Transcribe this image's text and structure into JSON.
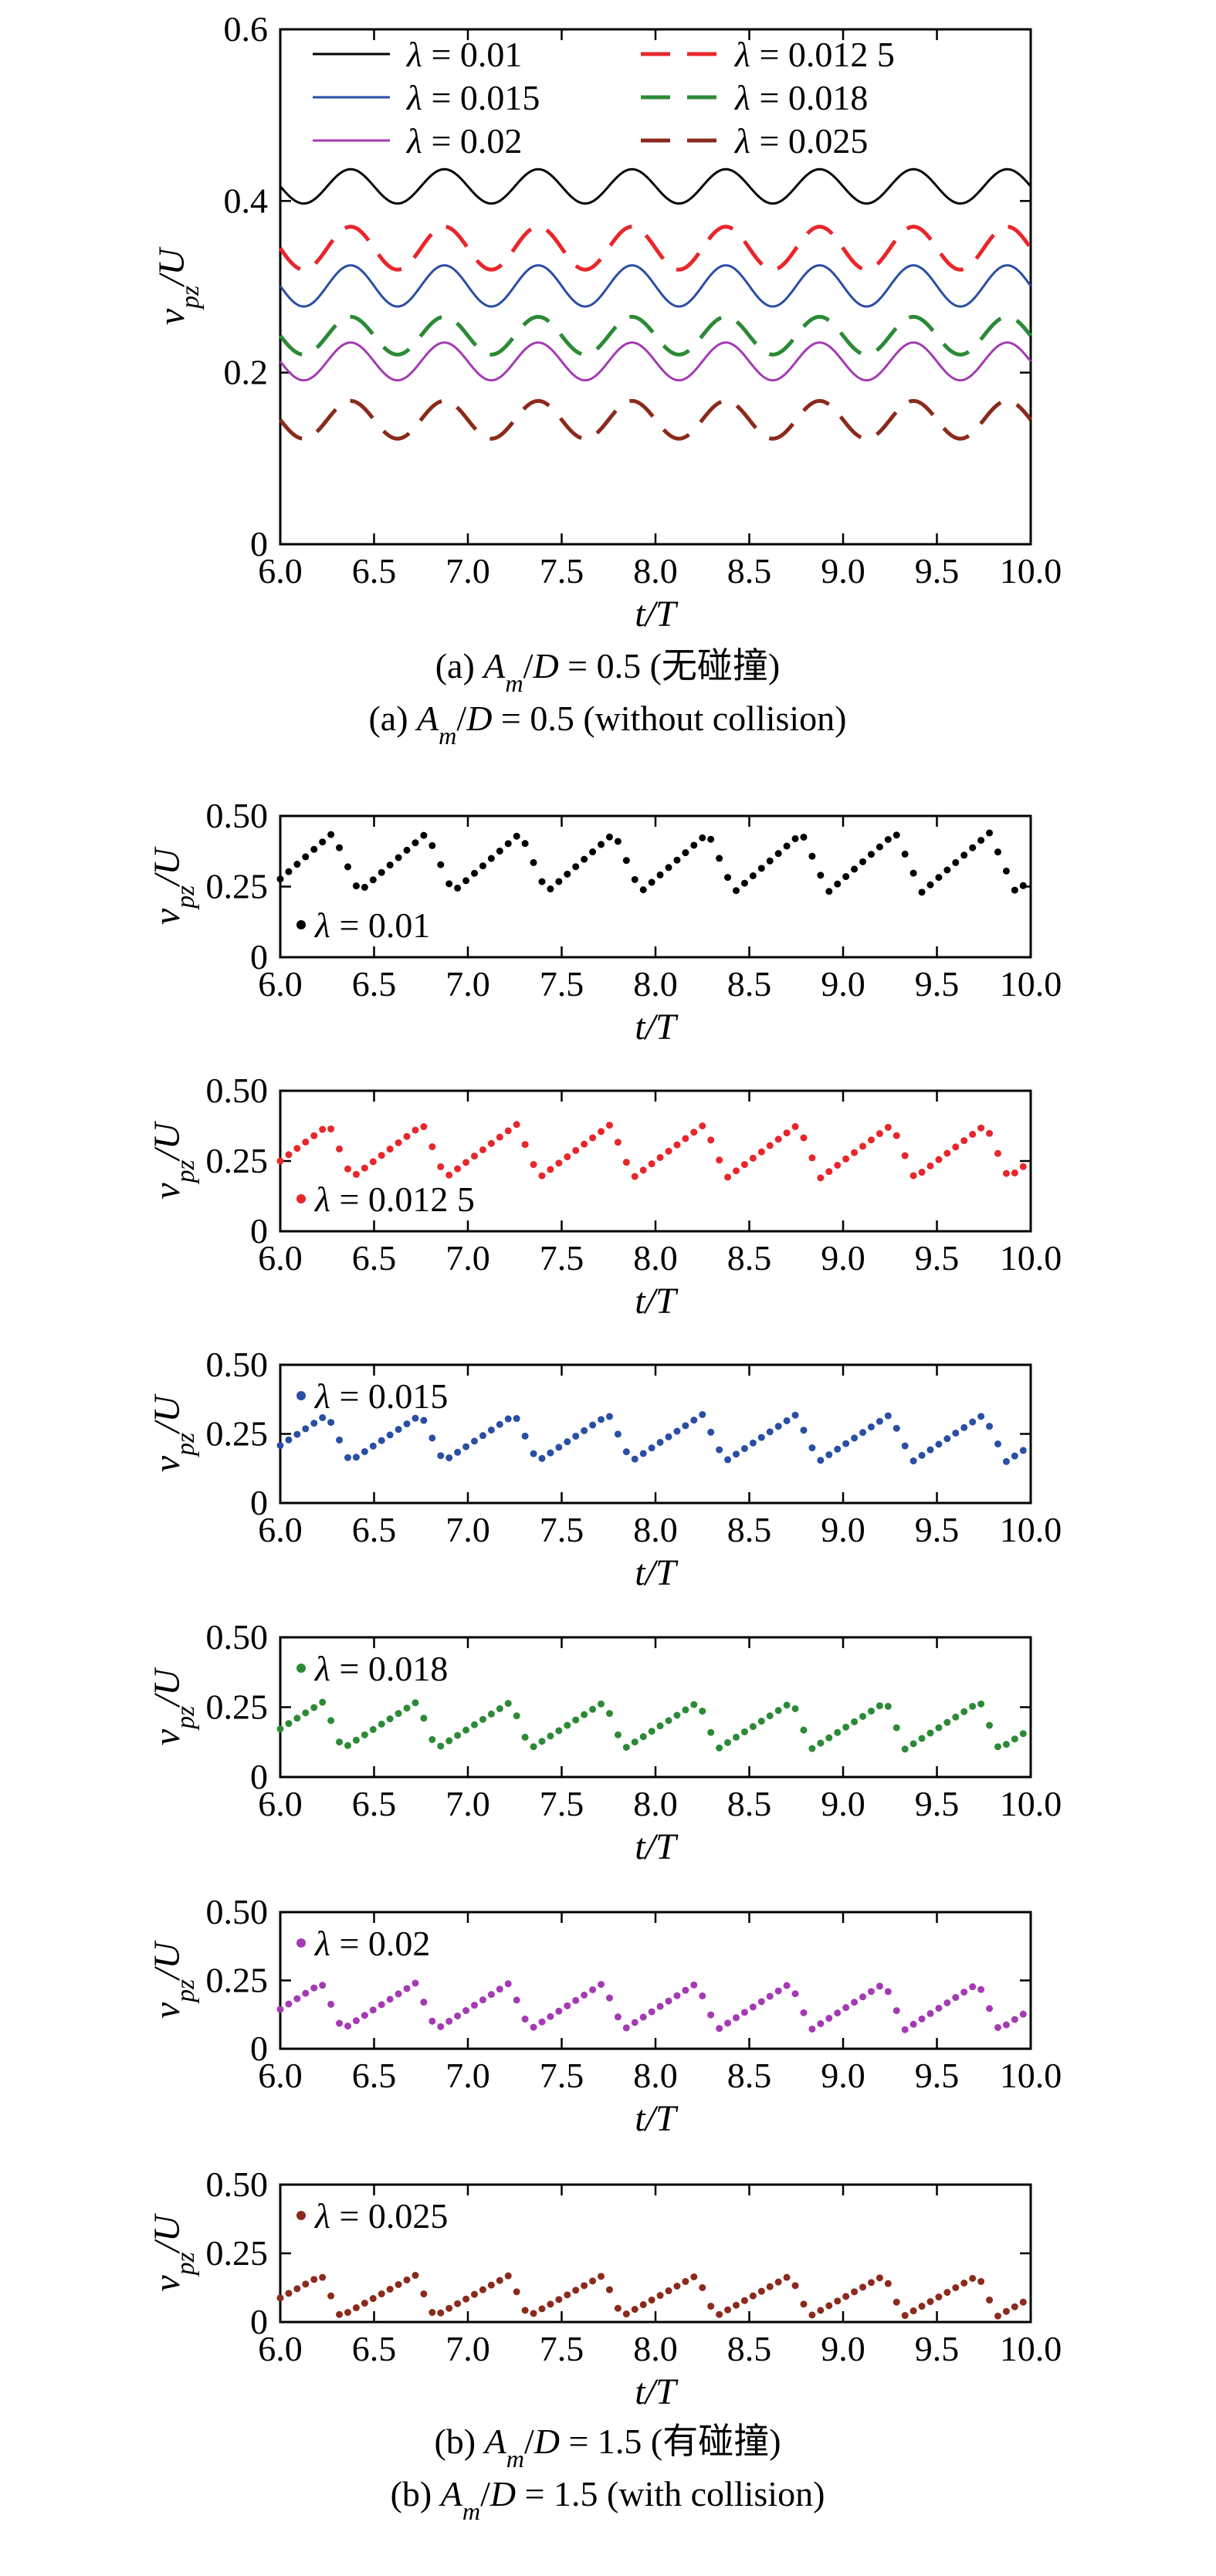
{
  "figure": {
    "caption_a_cn": "(a) A_m/D = 0.5 (无碰撞)",
    "caption_a_en": "(a) A_m/D = 0.5 (without collision)",
    "caption_b_cn": "(b) A_m/D = 1.5 (有碰撞)",
    "caption_b_en": "(b) A_m/D = 1.5 (with collision)"
  },
  "chart_data": [
    {
      "id": "a",
      "type": "line",
      "xlabel": "t/T",
      "ylabel": "v_pz/U",
      "xlim": [
        6.0,
        10.0
      ],
      "ylim": [
        0,
        0.6
      ],
      "xticks": [
        "6.0",
        "6.5",
        "7.0",
        "7.5",
        "8.0",
        "8.5",
        "9.0",
        "9.5",
        "10.0"
      ],
      "yticks": [
        "0",
        "0.2",
        "0.4",
        "0.6"
      ],
      "legend_placement": "top",
      "period": 0.5,
      "phase_x": 6.375,
      "series": [
        {
          "name": "λ = 0.01",
          "color": "#000000",
          "dash": "solid",
          "mean": 0.417,
          "amplitude": 0.02
        },
        {
          "name": "λ = 0.012 5",
          "color": "#e8262b",
          "dash": "dashed",
          "mean": 0.345,
          "amplitude": 0.025
        },
        {
          "name": "λ = 0.015",
          "color": "#2a4ea3",
          "dash": "solid",
          "mean": 0.301,
          "amplitude": 0.024
        },
        {
          "name": "λ = 0.018",
          "color": "#2c8a36",
          "dash": "dashed",
          "mean": 0.243,
          "amplitude": 0.022
        },
        {
          "name": "λ = 0.02",
          "color": "#a43ab3",
          "dash": "solid",
          "mean": 0.213,
          "amplitude": 0.022
        },
        {
          "name": "λ = 0.025",
          "color": "#8b2a1c",
          "dash": "dashed",
          "mean": 0.145,
          "amplitude": 0.022
        }
      ]
    },
    {
      "id": "b1",
      "type": "scatter",
      "xlabel": "t/T",
      "ylabel": "v_pz/U",
      "xlim": [
        6.0,
        10.0
      ],
      "ylim": [
        0,
        0.5
      ],
      "xticks": [
        "6.0",
        "6.5",
        "7.0",
        "7.5",
        "8.0",
        "8.5",
        "9.0",
        "9.5",
        "10.0"
      ],
      "yticks": [
        "0",
        "0.25",
        "0.50"
      ],
      "legend_placement": "bottom-left",
      "series": [
        {
          "name": "λ = 0.01",
          "color": "#000000",
          "period": 0.5,
          "t_min": 6.42,
          "t_peak": 6.28,
          "t_drop": 6.37,
          "v_min": 0.23,
          "v_peak": 0.44
        }
      ]
    },
    {
      "id": "b2",
      "type": "scatter",
      "xlabel": "t/T",
      "ylabel": "v_pz/U",
      "xlim": [
        6.0,
        10.0
      ],
      "ylim": [
        0,
        0.5
      ],
      "xticks": [
        "6.0",
        "6.5",
        "7.0",
        "7.5",
        "8.0",
        "8.5",
        "9.0",
        "9.5",
        "10.0"
      ],
      "yticks": [
        "0",
        "0.25",
        "0.50"
      ],
      "legend_placement": "bottom-left",
      "series": [
        {
          "name": "λ = 0.012 5",
          "color": "#e8262b",
          "period": 0.5,
          "t_min": 6.38,
          "t_peak": 6.26,
          "t_drop": 6.33,
          "v_min": 0.19,
          "v_peak": 0.38
        }
      ]
    },
    {
      "id": "b3",
      "type": "scatter",
      "xlabel": "t/T",
      "ylabel": "v_pz/U",
      "xlim": [
        6.0,
        10.0
      ],
      "ylim": [
        0,
        0.5
      ],
      "xticks": [
        "6.0",
        "6.5",
        "7.0",
        "7.5",
        "8.0",
        "8.5",
        "9.0",
        "9.5",
        "10.0"
      ],
      "yticks": [
        "0",
        "0.25",
        "0.50"
      ],
      "legend_placement": "top-left",
      "series": [
        {
          "name": "λ = 0.015",
          "color": "#2a4ea3",
          "period": 0.5,
          "t_min": 6.37,
          "t_peak": 6.25,
          "t_drop": 6.33,
          "v_min": 0.15,
          "v_peak": 0.32
        }
      ]
    },
    {
      "id": "b4",
      "type": "scatter",
      "xlabel": "t/T",
      "ylabel": "v_pz/U",
      "xlim": [
        6.0,
        10.0
      ],
      "ylim": [
        0,
        0.5
      ],
      "xticks": [
        "6.0",
        "6.5",
        "7.0",
        "7.5",
        "8.0",
        "8.5",
        "9.0",
        "9.5",
        "10.0"
      ],
      "yticks": [
        "0",
        "0.25",
        "0.50"
      ],
      "legend_placement": "top-left",
      "series": [
        {
          "name": "λ = 0.018",
          "color": "#2c8a36",
          "period": 0.5,
          "t_min": 6.33,
          "t_peak": 6.23,
          "t_drop": 6.3,
          "v_min": 0.1,
          "v_peak": 0.27
        }
      ]
    },
    {
      "id": "b5",
      "type": "scatter",
      "xlabel": "t/T",
      "ylabel": "v_pz/U",
      "xlim": [
        6.0,
        10.0
      ],
      "ylim": [
        0,
        0.5
      ],
      "xticks": [
        "6.0",
        "6.5",
        "7.0",
        "7.5",
        "8.0",
        "8.5",
        "9.0",
        "9.5",
        "10.0"
      ],
      "yticks": [
        "0",
        "0.25",
        "0.50"
      ],
      "legend_placement": "top-left",
      "series": [
        {
          "name": "λ = 0.02",
          "color": "#a43ab3",
          "period": 0.5,
          "t_min": 6.33,
          "t_peak": 6.22,
          "t_drop": 6.29,
          "v_min": 0.07,
          "v_peak": 0.24
        }
      ]
    },
    {
      "id": "b6",
      "type": "scatter",
      "xlabel": "t/T",
      "ylabel": "v_pz/U",
      "xlim": [
        6.0,
        10.0
      ],
      "ylim": [
        0,
        0.5
      ],
      "xticks": [
        "6.0",
        "6.5",
        "7.0",
        "7.5",
        "8.0",
        "8.5",
        "9.0",
        "9.5",
        "10.0"
      ],
      "yticks": [
        "0",
        "0.25",
        "0.50"
      ],
      "legend_placement": "top-left",
      "series": [
        {
          "name": "λ = 0.025",
          "color": "#8b2a1c",
          "period": 0.5,
          "t_min": 6.32,
          "t_peak": 6.22,
          "t_drop": 6.29,
          "v_min": 0.02,
          "v_peak": 0.17
        }
      ]
    }
  ]
}
